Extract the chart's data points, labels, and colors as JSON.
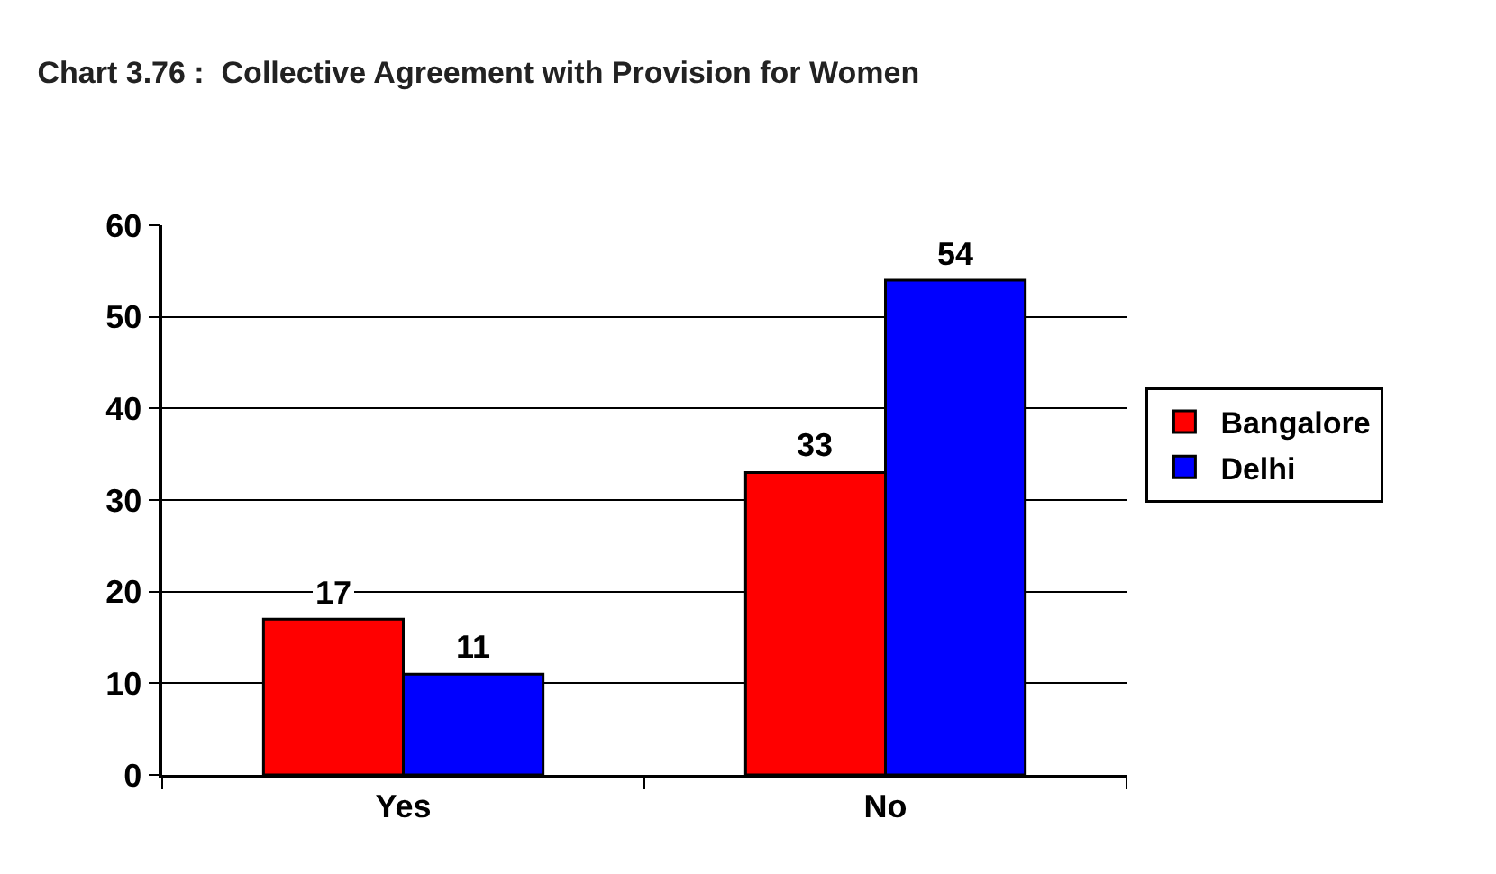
{
  "chart_data": {
    "type": "bar",
    "title": "Chart 3.76 :  Collective Agreement with Provision for Women",
    "categories": [
      "Yes",
      "No"
    ],
    "series": [
      {
        "name": "Bangalore",
        "color": "#ff0000",
        "values": [
          17,
          33
        ]
      },
      {
        "name": "Delhi",
        "color": "#0000ff",
        "values": [
          11,
          54
        ]
      }
    ],
    "ylim": [
      0,
      60
    ],
    "yticks": [
      0,
      10,
      20,
      30,
      40,
      50,
      60
    ],
    "grid": "y",
    "legend": "right",
    "data_labels": true
  }
}
